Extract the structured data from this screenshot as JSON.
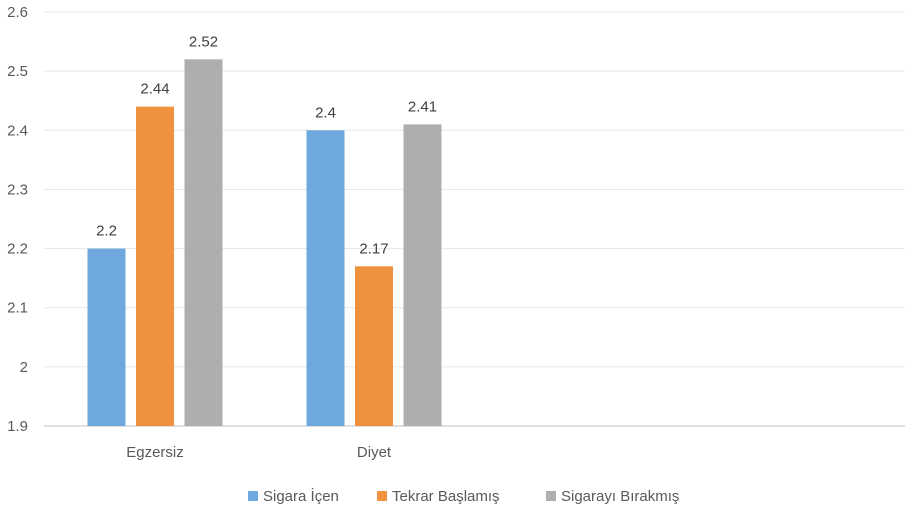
{
  "chart_data": {
    "type": "bar",
    "categories": [
      "Egzersiz",
      "Diyet"
    ],
    "series": [
      {
        "name": "Sigara İçen",
        "values": [
          2.2,
          2.4
        ],
        "color": "#6FA8DC"
      },
      {
        "name": "Tekrar Başlamış",
        "values": [
          2.44,
          2.17
        ],
        "color": "#F0913E"
      },
      {
        "name": "Sigarayı Bırakmış",
        "values": [
          2.52,
          2.41
        ],
        "color": "#AEAEAE"
      }
    ],
    "ylim": [
      1.9,
      2.6
    ],
    "yticks": [
      "1.9",
      "2",
      "2.1",
      "2.2",
      "2.3",
      "2.4",
      "2.5",
      "2.6"
    ],
    "grid": true,
    "legend_position": "bottom",
    "title": "",
    "xlabel": "",
    "ylabel": ""
  }
}
